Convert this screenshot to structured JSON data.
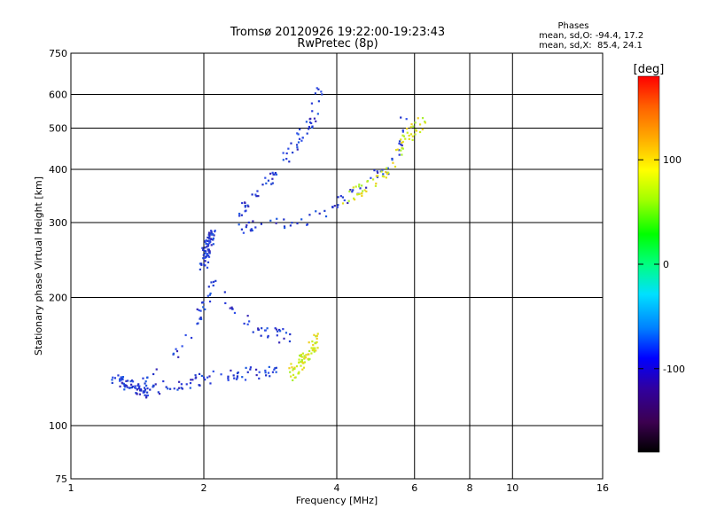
{
  "chart_data": {
    "type": "scatter",
    "title": "Tromsø 20120926 19:22:00-19:23:43",
    "subtitle": "RwPretec (8p)",
    "xlabel": "Frequency [MHz]",
    "ylabel": "Stationary phase Virtual Height [km]",
    "x_scale": "log",
    "y_scale": "log",
    "xlim": [
      1,
      16
    ],
    "ylim": [
      75,
      750
    ],
    "x_ticks": [
      1,
      2,
      4,
      6,
      8,
      10,
      16
    ],
    "x_tick_labels": [
      "1",
      "2",
      "4",
      "6",
      "8",
      "10",
      "16"
    ],
    "y_ticks": [
      75,
      100,
      200,
      300,
      400,
      500,
      600,
      750
    ],
    "y_tick_labels": [
      "75",
      "100",
      "200",
      "300",
      "400",
      "500",
      "600",
      "750"
    ],
    "grid": true,
    "phase_info": {
      "heading": "Phases",
      "line_o": "mean, sd,O: -94.4, 17.2",
      "line_x": "mean, sd,X:  85.4, 24.1"
    },
    "colorbar": {
      "label": "[deg]",
      "range": [
        -180,
        180
      ],
      "ticks": [
        100,
        0,
        -100
      ],
      "tick_labels": [
        "100",
        "0",
        "-100"
      ],
      "colors": [
        "#000000",
        "#3c0050",
        "#3000a0",
        "#0000ff",
        "#0080ff",
        "#00e0ff",
        "#00ff80",
        "#00ff00",
        "#a0ff00",
        "#ffff00",
        "#ffb000",
        "#ff6000",
        "#ff0000"
      ]
    },
    "series": [
      {
        "mode": "O",
        "color": "#2a3ad8",
        "traces": [
          {
            "f": [
              1.25,
              1.5
            ],
            "h": [
              128,
              120
            ],
            "desc": "O E-layer base"
          },
          {
            "f": [
              1.5,
              1.7,
              1.9,
              2.05,
              2.3,
              2.6,
              2.9
            ],
            "h": [
              120,
              124,
              127,
              130,
              131,
              133,
              134
            ],
            "desc": "O lower trace"
          },
          {
            "f": [
              1.45,
              1.7,
              1.9,
              2.0,
              2.1,
              2.3,
              2.6,
              2.9,
              3.1
            ],
            "h": [
              128,
              145,
              170,
              195,
              215,
              190,
              170,
              165,
              160
            ],
            "desc": "O E/F1 band"
          },
          {
            "f": [
              2.0,
              2.05,
              2.1
            ],
            "h": [
              240,
              270,
              282
            ],
            "desc": "O cusp"
          },
          {
            "f": [
              2.35,
              2.6,
              2.9,
              3.2,
              3.6,
              4.0,
              4.5,
              5.0,
              5.5,
              5.7
            ],
            "h": [
              290,
              294,
              298,
              303,
              310,
              330,
              360,
              390,
              430,
              560
            ],
            "desc": "O F2 lower"
          },
          {
            "f": [
              2.4,
              2.7,
              3.0,
              3.3,
              3.5,
              3.7
            ],
            "h": [
              320,
              360,
              410,
              470,
              520,
              640
            ],
            "desc": "O F2 upper"
          }
        ]
      },
      {
        "mode": "X",
        "color": "#e0e020",
        "traces": [
          {
            "f": [
              3.1,
              3.3,
              3.5,
              3.6
            ],
            "h": [
              130,
              140,
              150,
              160
            ],
            "desc": "X F1"
          },
          {
            "f": [
              4.2,
              4.6,
              5.0,
              5.4,
              5.7,
              6.0,
              6.3
            ],
            "h": [
              340,
              360,
              380,
              420,
              470,
              500,
              520
            ],
            "desc": "X F2"
          }
        ]
      }
    ]
  }
}
